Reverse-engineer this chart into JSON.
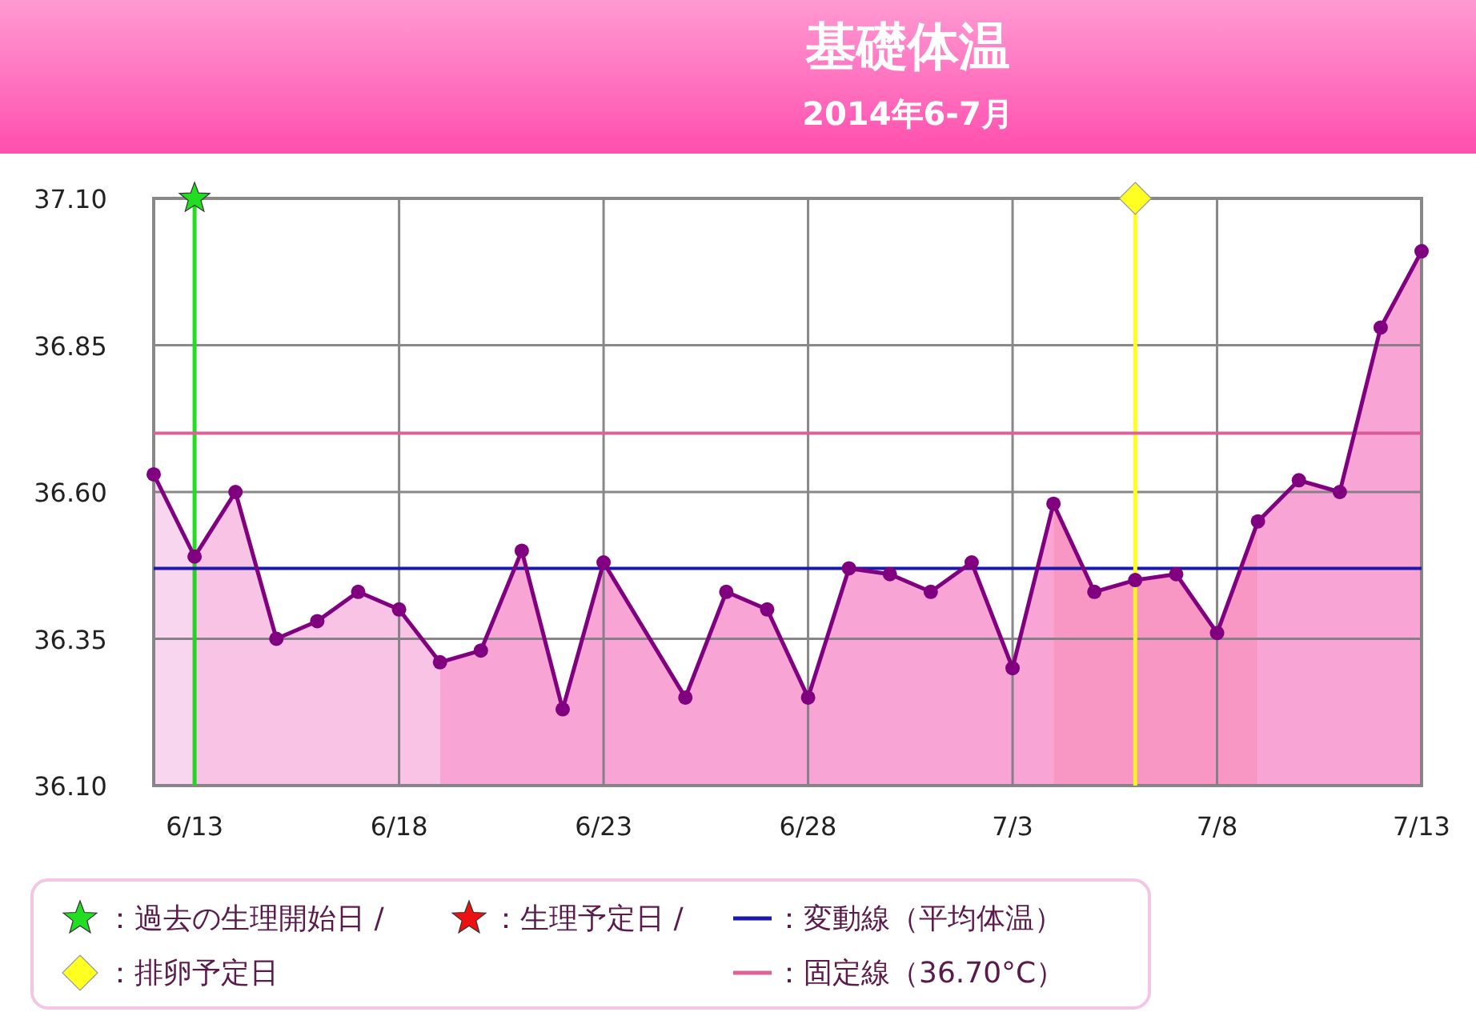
{
  "chart_data": {
    "type": "area",
    "title": "基礎体温",
    "subtitle": "2014年6-7月",
    "x": [
      "2014-06-12",
      "2014-06-13",
      "2014-06-14",
      "2014-06-15",
      "2014-06-16",
      "2014-06-17",
      "2014-06-18",
      "2014-06-19",
      "2014-06-20",
      "2014-06-21",
      "2014-06-22",
      "2014-06-23",
      "2014-06-25",
      "2014-06-26",
      "2014-06-27",
      "2014-06-28",
      "2014-06-29",
      "2014-06-30",
      "2014-07-01",
      "2014-07-02",
      "2014-07-03",
      "2014-07-04",
      "2014-07-05",
      "2014-07-06",
      "2014-07-07",
      "2014-07-08",
      "2014-07-09",
      "2014-07-10",
      "2014-07-11",
      "2014-07-12",
      "2014-07-13"
    ],
    "series": [
      {
        "color": "#800080",
        "values": [
          36.63,
          36.49,
          36.6,
          36.35,
          36.38,
          36.43,
          36.4,
          36.31,
          36.33,
          36.5,
          36.23,
          36.48,
          36.25,
          36.43,
          36.4,
          36.25,
          36.47,
          36.46,
          36.43,
          36.48,
          36.3,
          36.58,
          36.43,
          36.45,
          36.46,
          36.36,
          36.55,
          36.62,
          36.6,
          36.88,
          37.01
        ]
      }
    ],
    "xlim": [
      "2014-06-12",
      "2014-07-13"
    ],
    "xticks": [
      {
        "value": "2014-06-13",
        "label": "6/13"
      },
      {
        "value": "2014-06-18",
        "label": "6/18"
      },
      {
        "value": "2014-06-23",
        "label": "6/23"
      },
      {
        "value": "2014-06-28",
        "label": "6/28"
      },
      {
        "value": "2014-07-03",
        "label": "7/3"
      },
      {
        "value": "2014-07-08",
        "label": "7/8"
      },
      {
        "value": "2014-07-13",
        "label": "7/13"
      }
    ],
    "ylim": [
      36.1,
      37.1
    ],
    "yticks": [
      {
        "value": 36.1,
        "label": "36.10"
      },
      36.35,
      {
        "value": 36.6,
        "label": "36.60"
      },
      36.85,
      {
        "value": 37.1,
        "label": "37.10"
      }
    ],
    "grid": true,
    "marker": "circle",
    "legend": "bottom",
    "bands": [
      {
        "axis": "x",
        "from": "2014-06-12",
        "to": "2014-06-13",
        "color": "#ffe4f6"
      },
      {
        "axis": "x",
        "from": "2014-06-13",
        "to": "2014-06-19",
        "color": "#ffd0ea"
      },
      {
        "axis": "x",
        "from": "2014-06-19",
        "to": "2014-07-04",
        "color": "#ffb0da"
      },
      {
        "axis": "x",
        "from": "2014-07-04",
        "to": "2014-07-09",
        "color": "#ffa0c8"
      },
      {
        "axis": "x",
        "from": "2014-07-09",
        "to": "2014-07-13",
        "color": "#ffb0da"
      }
    ],
    "ref_lines": [
      {
        "axis": "x",
        "value": "2014-06-13",
        "label": "：過去の生理開始日 /",
        "color": "#22dd22"
      },
      {
        "axis": "y",
        "value": 36.47,
        "label": "：変動線（平均体温）",
        "color": "#1a1aaa"
      },
      {
        "axis": "x",
        "value": "2014-07-06",
        "label": "：排卵予定日",
        "color": "#ffff22"
      },
      {
        "axis": "y",
        "value": 36.7,
        "label": "：固定線（36.70°C）",
        "color": "#e0609a"
      }
    ],
    "annotations": [
      "：生理予定日 /"
    ]
  }
}
